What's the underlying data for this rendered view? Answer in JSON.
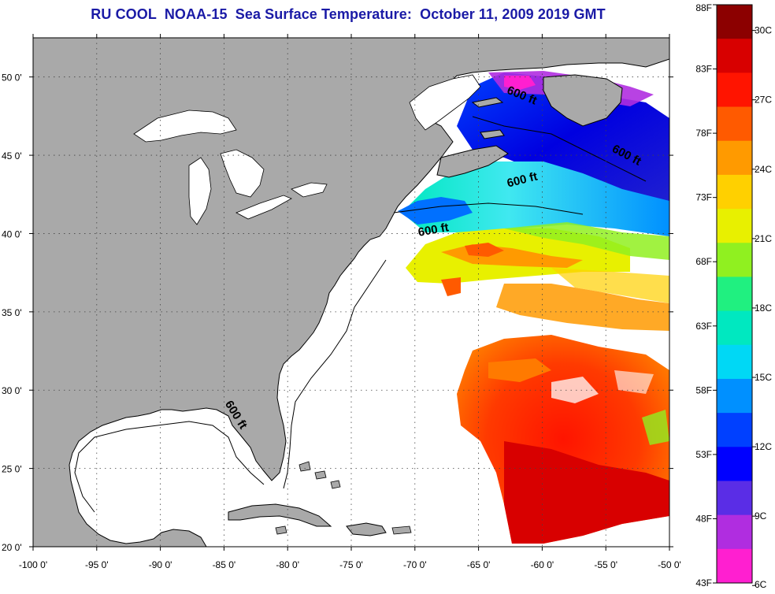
{
  "title": "RU COOL  NOAA-15  Sea Surface Temperature:  October 11, 2009 2019 GMT",
  "map": {
    "lon_range": [
      -100,
      -50
    ],
    "lat_range": [
      20,
      52.5
    ],
    "lon_ticks": [
      "-100 0'",
      "-95 0'",
      "-90 0'",
      "-85 0'",
      "-80 0'",
      "-75 0'",
      "-70 0'",
      "-65 0'",
      "-60 0'",
      "-55 0'",
      "-50 0'"
    ],
    "lat_ticks": [
      "20 0'",
      "25 0'",
      "30 0'",
      "35 0'",
      "40 0'",
      "45 0'",
      "50 0'"
    ],
    "lon_values": [
      -100,
      -95,
      -90,
      -85,
      -80,
      -75,
      -70,
      -65,
      -60,
      -55,
      -50
    ],
    "lat_values": [
      20,
      25,
      30,
      35,
      40,
      45,
      50
    ],
    "grid": "dotted",
    "land_color": "#a9a9a9",
    "ocean_color": "#ffffff",
    "contour_label": "600 ft",
    "contour_labels": [
      {
        "text": "600 ft",
        "lon": -61.7,
        "lat": 48.6,
        "angle": 22
      },
      {
        "text": "600 ft",
        "lon": -53.5,
        "lat": 44.8,
        "angle": 28
      },
      {
        "text": "600 ft",
        "lon": -61.5,
        "lat": 43.2,
        "angle": -14
      },
      {
        "text": "600 ft",
        "lon": -68.5,
        "lat": 40.0,
        "angle": -10
      },
      {
        "text": "600 ft",
        "lon": -84.3,
        "lat": 28.3,
        "angle": 58
      }
    ]
  },
  "colorbar": {
    "colors": [
      "#ff1fd0",
      "#b02de0",
      "#5a2de6",
      "#0000ff",
      "#0040ff",
      "#0090ff",
      "#00d8f5",
      "#00e8c0",
      "#20f080",
      "#90f020",
      "#e8f000",
      "#ffd000",
      "#ff9a00",
      "#ff5a00",
      "#ff1400",
      "#d80000",
      "#8c0000"
    ],
    "fahrenheit_labels": [
      "88F",
      "83F",
      "78F",
      "73F",
      "68F",
      "63F",
      "58F",
      "53F",
      "48F",
      "43F"
    ],
    "fahrenheit_values": [
      88,
      83,
      78,
      73,
      68,
      63,
      58,
      53,
      48,
      43
    ],
    "celsius_labels": [
      "30C",
      "27C",
      "24C",
      "21C",
      "18C",
      "15C",
      "12C",
      "9C",
      "6C"
    ],
    "celsius_values": [
      30,
      27,
      24,
      21,
      18,
      15,
      12,
      9,
      6
    ],
    "range_f": [
      43,
      88
    ]
  }
}
